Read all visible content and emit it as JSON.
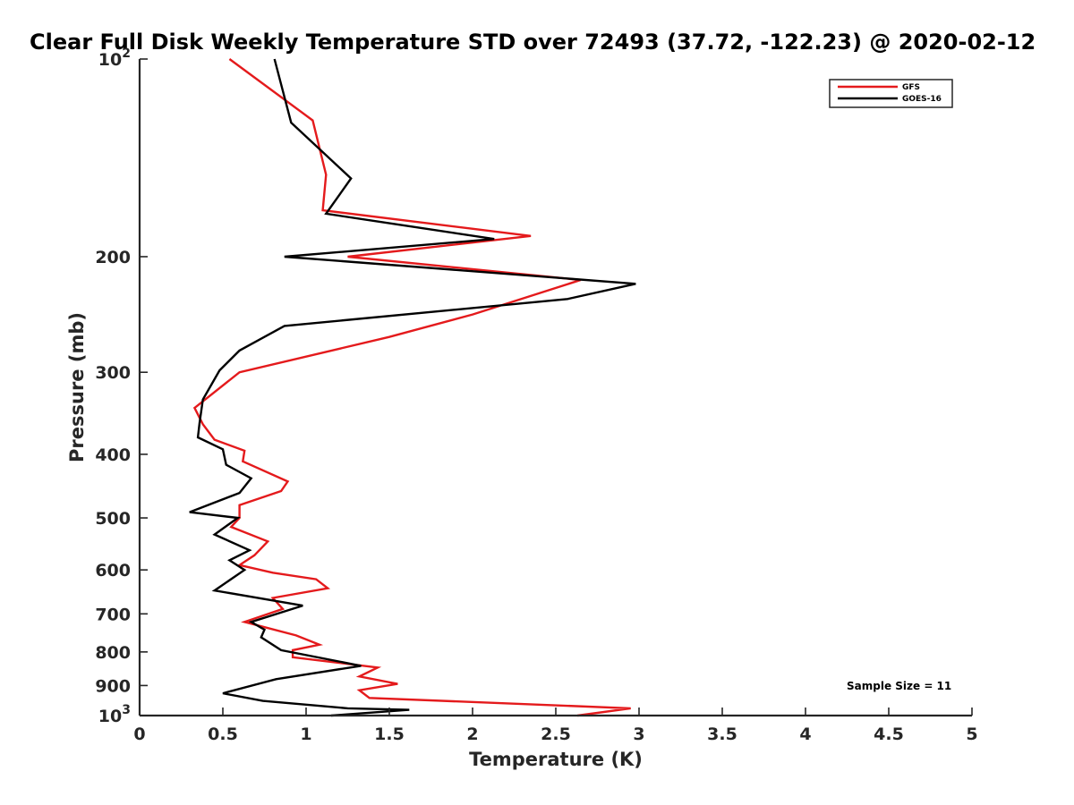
{
  "chart_data": {
    "type": "line",
    "title": "Clear Full Disk Weekly Temperature STD over 72493 (37.72, -122.23) @ 2020-02-12",
    "xlabel": "Temperature (K)",
    "ylabel": "Pressure (mb)",
    "xlim": [
      0,
      5
    ],
    "ylim": [
      100,
      1000
    ],
    "yscale": "log",
    "y_reversed": true,
    "x_ticks": [
      0,
      0.5,
      1,
      1.5,
      2,
      2.5,
      3,
      3.5,
      4,
      4.5,
      5
    ],
    "x_tick_labels": [
      "0",
      "0.5",
      "1",
      "1.5",
      "2",
      "2.5",
      "3",
      "3.5",
      "4",
      "4.5",
      "5"
    ],
    "y_ticks": [
      {
        "value": 100,
        "base": "10",
        "exp": "2"
      },
      {
        "value": 200,
        "label": "200"
      },
      {
        "value": 300,
        "label": "300"
      },
      {
        "value": 400,
        "label": "400"
      },
      {
        "value": 500,
        "label": "500"
      },
      {
        "value": 600,
        "label": "600"
      },
      {
        "value": 700,
        "label": "700"
      },
      {
        "value": 800,
        "label": "800"
      },
      {
        "value": 900,
        "label": "900"
      },
      {
        "value": 1000,
        "base": "10",
        "exp": "3"
      }
    ],
    "legend": {
      "location": "top-right",
      "entries": [
        "GFS",
        "GOES-16"
      ]
    },
    "annotation": "Sample Size = 11",
    "series": [
      {
        "name": "GFS",
        "color": "#e41a1c",
        "points": [
          [
            0.54,
            100
          ],
          [
            1.04,
            124
          ],
          [
            1.12,
            150
          ],
          [
            1.1,
            170
          ],
          [
            2.35,
            186
          ],
          [
            1.25,
            200
          ],
          [
            2.65,
            217
          ],
          [
            2.0,
            245
          ],
          [
            1.5,
            265
          ],
          [
            0.6,
            300
          ],
          [
            0.33,
            340
          ],
          [
            0.38,
            360
          ],
          [
            0.45,
            380
          ],
          [
            0.63,
            395
          ],
          [
            0.62,
            410
          ],
          [
            0.89,
            440
          ],
          [
            0.85,
            455
          ],
          [
            0.6,
            478
          ],
          [
            0.6,
            500
          ],
          [
            0.55,
            516
          ],
          [
            0.77,
            543
          ],
          [
            0.69,
            570
          ],
          [
            0.6,
            590
          ],
          [
            0.8,
            606
          ],
          [
            1.06,
            620
          ],
          [
            1.13,
            640
          ],
          [
            0.8,
            662
          ],
          [
            0.86,
            688
          ],
          [
            0.63,
            720
          ],
          [
            0.94,
            755
          ],
          [
            1.08,
            780
          ],
          [
            0.92,
            795
          ],
          [
            0.92,
            815
          ],
          [
            1.43,
            845
          ],
          [
            1.32,
            872
          ],
          [
            1.55,
            895
          ],
          [
            1.32,
            915
          ],
          [
            1.38,
            940
          ],
          [
            2.95,
            975
          ],
          [
            2.63,
            1000
          ]
        ]
      },
      {
        "name": "GOES-16",
        "color": "#000000",
        "points": [
          [
            0.81,
            100
          ],
          [
            0.91,
            125
          ],
          [
            1.27,
            152
          ],
          [
            1.12,
            172
          ],
          [
            2.13,
            188
          ],
          [
            0.87,
            200
          ],
          [
            2.98,
            220
          ],
          [
            2.57,
            232
          ],
          [
            0.87,
            255
          ],
          [
            0.6,
            278
          ],
          [
            0.48,
            298
          ],
          [
            0.38,
            330
          ],
          [
            0.36,
            358
          ],
          [
            0.35,
            377
          ],
          [
            0.5,
            393
          ],
          [
            0.52,
            415
          ],
          [
            0.67,
            435
          ],
          [
            0.6,
            458
          ],
          [
            0.3,
            490
          ],
          [
            0.59,
            500
          ],
          [
            0.45,
            530
          ],
          [
            0.66,
            560
          ],
          [
            0.54,
            580
          ],
          [
            0.63,
            600
          ],
          [
            0.45,
            645
          ],
          [
            0.98,
            680
          ],
          [
            0.67,
            720
          ],
          [
            0.75,
            740
          ],
          [
            0.73,
            760
          ],
          [
            0.85,
            795
          ],
          [
            1.33,
            840
          ],
          [
            0.82,
            880
          ],
          [
            0.5,
            925
          ],
          [
            0.74,
            950
          ],
          [
            1.25,
            975
          ],
          [
            1.62,
            980
          ],
          [
            1.15,
            1000
          ]
        ]
      }
    ]
  }
}
